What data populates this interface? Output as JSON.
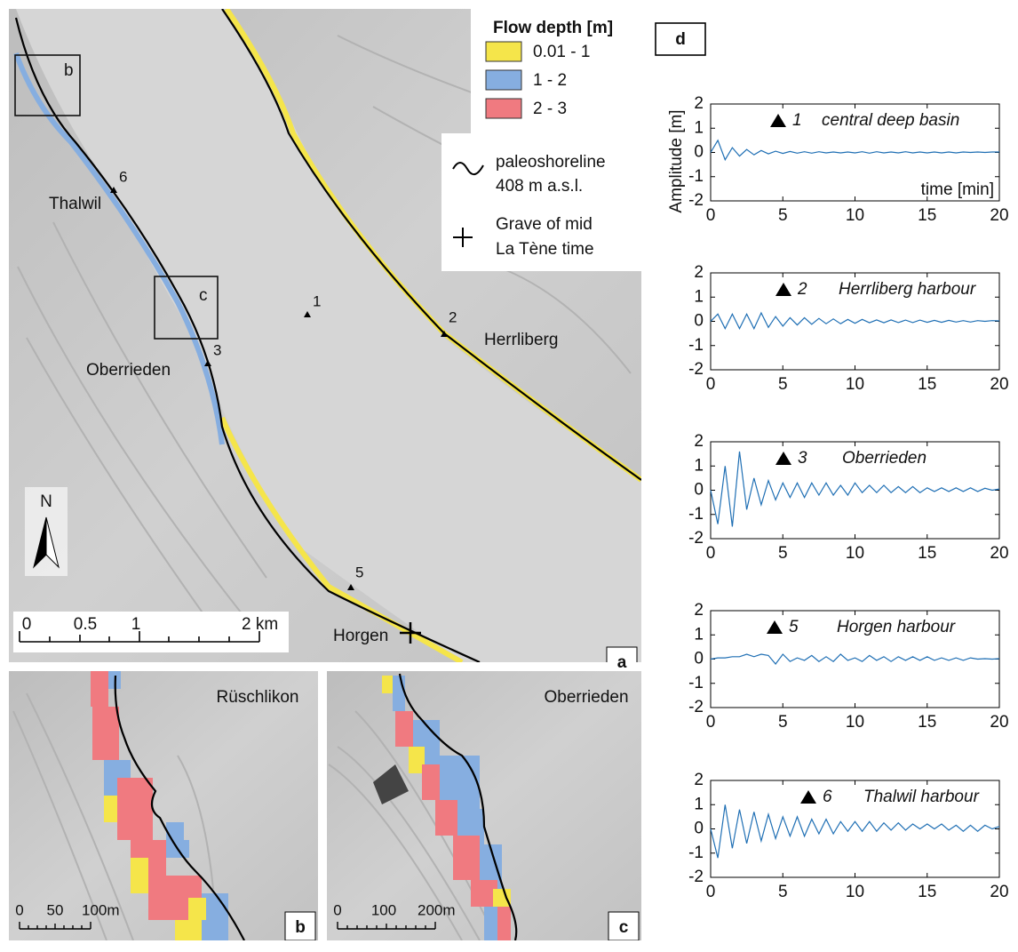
{
  "map": {
    "legend_title": "Flow depth [m]",
    "classes": [
      {
        "label": "0.01 - 1",
        "color": "#f5e54a"
      },
      {
        "label": "1 - 2",
        "color": "#86aee0"
      },
      {
        "label": "2 - 3",
        "color": "#f07a80"
      }
    ],
    "shoreline_label_1": "paleoshoreline",
    "shoreline_label_2": "408 m a.s.l.",
    "grave_label_1": "Grave  of mid",
    "grave_label_2": "La Tène time",
    "stations": [
      "1",
      "2",
      "3",
      "5",
      "6"
    ],
    "places": [
      "Thalwil",
      "Herrliberg",
      "Oberrieden",
      "Horgen"
    ],
    "north": "N",
    "scale_labels": [
      "0",
      "0.5",
      "1",
      "2 km"
    ],
    "inset_boxes": [
      "b",
      "c"
    ],
    "panel_labels": [
      "a",
      "b",
      "c",
      "d"
    ],
    "inset_b": {
      "place": "Rüschlikon",
      "scale_labels": [
        "0",
        "50",
        "100m"
      ]
    },
    "inset_c": {
      "place": "Oberrieden",
      "scale_labels": [
        "0",
        "100",
        "200m"
      ]
    }
  },
  "chart_data": [
    {
      "type": "line",
      "station": "1",
      "title": "central deep basin",
      "ylabel": "Amplitude [m]",
      "annotation": "time [min]",
      "x": [
        0,
        0.5,
        1,
        1.5,
        2,
        2.5,
        3,
        3.5,
        4,
        4.5,
        5,
        5.5,
        6,
        6.5,
        7,
        7.5,
        8,
        8.5,
        9,
        9.5,
        10,
        10.5,
        11,
        11.5,
        12,
        12.5,
        13,
        13.5,
        14,
        14.5,
        15,
        15.5,
        16,
        16.5,
        17,
        17.5,
        18,
        18.5,
        19,
        19.5,
        20
      ],
      "values": [
        0,
        0.5,
        -0.3,
        0.2,
        -0.15,
        0.12,
        -0.1,
        0.08,
        -0.06,
        0.05,
        -0.04,
        0.04,
        -0.03,
        0.03,
        -0.03,
        0.03,
        -0.02,
        0.02,
        -0.02,
        0.02,
        -0.02,
        0.03,
        -0.03,
        0.03,
        -0.02,
        0.02,
        -0.02,
        0.03,
        -0.02,
        0.02,
        -0.02,
        0.02,
        -0.02,
        0.02,
        -0.02,
        0.02,
        0,
        0.02,
        0,
        0.02,
        0.02
      ],
      "color": "#1f6fb4",
      "xlim": [
        0,
        20
      ],
      "xticks": [
        0,
        5,
        10,
        15,
        20
      ],
      "ylim": [
        -2,
        2
      ],
      "yticks": [
        -2,
        -1,
        0,
        1,
        2
      ]
    },
    {
      "type": "line",
      "station": "2",
      "title": "Herrliberg harbour",
      "x": [
        0,
        0.5,
        1,
        1.5,
        2,
        2.5,
        3,
        3.5,
        4,
        4.5,
        5,
        5.5,
        6,
        6.5,
        7,
        7.5,
        8,
        8.5,
        9,
        9.5,
        10,
        10.5,
        11,
        11.5,
        12,
        12.5,
        13,
        13.5,
        14,
        14.5,
        15,
        15.5,
        16,
        16.5,
        17,
        17.5,
        18,
        18.5,
        19,
        19.5,
        20
      ],
      "values": [
        0,
        0.3,
        -0.3,
        0.3,
        -0.3,
        0.3,
        -0.3,
        0.35,
        -0.25,
        0.2,
        -0.2,
        0.15,
        -0.15,
        0.15,
        -0.12,
        0.12,
        -0.1,
        0.1,
        -0.1,
        0.08,
        -0.08,
        0.08,
        -0.06,
        0.06,
        -0.06,
        0.06,
        -0.05,
        0.05,
        -0.05,
        0.05,
        -0.04,
        0.04,
        -0.04,
        0.04,
        -0.03,
        0.03,
        -0.03,
        0.03,
        0,
        0.03,
        0.02
      ],
      "color": "#1f6fb4",
      "xlim": [
        0,
        20
      ],
      "xticks": [
        0,
        5,
        10,
        15,
        20
      ],
      "ylim": [
        -2,
        2
      ],
      "yticks": [
        -2,
        -1,
        0,
        1,
        2
      ]
    },
    {
      "type": "line",
      "station": "3",
      "title": "Oberrieden",
      "x": [
        0,
        0.5,
        1,
        1.5,
        2,
        2.5,
        3,
        3.5,
        4,
        4.5,
        5,
        5.5,
        6,
        6.5,
        7,
        7.5,
        8,
        8.5,
        9,
        9.5,
        10,
        10.5,
        11,
        11.5,
        12,
        12.5,
        13,
        13.5,
        14,
        14.5,
        15,
        15.5,
        16,
        16.5,
        17,
        17.5,
        18,
        18.5,
        19,
        19.5,
        20
      ],
      "values": [
        0,
        -1.4,
        1.0,
        -1.5,
        1.6,
        -0.8,
        0.5,
        -0.6,
        0.4,
        -0.4,
        0.3,
        -0.3,
        0.3,
        -0.3,
        0.3,
        -0.2,
        0.3,
        -0.2,
        0.2,
        -0.2,
        0.3,
        -0.1,
        0.2,
        -0.1,
        0.2,
        -0.1,
        0.15,
        -0.1,
        0.15,
        -0.1,
        0.1,
        -0.05,
        0.1,
        -0.05,
        0.1,
        -0.05,
        0.1,
        -0.05,
        0.08,
        0,
        0.05
      ],
      "color": "#1f6fb4",
      "xlim": [
        0,
        20
      ],
      "xticks": [
        0,
        5,
        10,
        15,
        20
      ],
      "ylim": [
        -2,
        2
      ],
      "yticks": [
        -2,
        -1,
        0,
        1,
        2
      ]
    },
    {
      "type": "line",
      "station": "5",
      "title": "Horgen harbour",
      "x": [
        0,
        0.5,
        1,
        1.5,
        2,
        2.5,
        3,
        3.5,
        4,
        4.5,
        5,
        5.5,
        6,
        6.5,
        7,
        7.5,
        8,
        8.5,
        9,
        9.5,
        10,
        10.5,
        11,
        11.5,
        12,
        12.5,
        13,
        13.5,
        14,
        14.5,
        15,
        15.5,
        16,
        16.5,
        17,
        17.5,
        18,
        18.5,
        19,
        19.5,
        20
      ],
      "values": [
        0,
        0.05,
        0.05,
        0.1,
        0.1,
        0.2,
        0.1,
        0.2,
        0.15,
        -0.2,
        0.2,
        -0.1,
        0.05,
        -0.05,
        0.15,
        -0.1,
        0.1,
        -0.1,
        0.2,
        -0.05,
        0.05,
        -0.1,
        0.15,
        -0.05,
        0.1,
        -0.1,
        0.1,
        -0.05,
        0.1,
        -0.05,
        0.1,
        -0.05,
        0.05,
        -0.05,
        0.05,
        -0.05,
        0.05,
        0,
        0.02,
        0,
        0.02
      ],
      "color": "#1f6fb4",
      "xlim": [
        0,
        20
      ],
      "xticks": [
        0,
        5,
        10,
        15,
        20
      ],
      "ylim": [
        -2,
        2
      ],
      "yticks": [
        -2,
        -1,
        0,
        1,
        2
      ]
    },
    {
      "type": "line",
      "station": "6",
      "title": "Thalwil harbour",
      "x": [
        0,
        0.5,
        1,
        1.5,
        2,
        2.5,
        3,
        3.5,
        4,
        4.5,
        5,
        5.5,
        6,
        6.5,
        7,
        7.5,
        8,
        8.5,
        9,
        9.5,
        10,
        10.5,
        11,
        11.5,
        12,
        12.5,
        13,
        13.5,
        14,
        14.5,
        15,
        15.5,
        16,
        16.5,
        17,
        17.5,
        18,
        18.5,
        19,
        19.5,
        20
      ],
      "values": [
        0,
        -1.2,
        1.0,
        -0.8,
        0.8,
        -0.6,
        0.7,
        -0.5,
        0.6,
        -0.4,
        0.5,
        -0.3,
        0.5,
        -0.3,
        0.4,
        -0.2,
        0.4,
        -0.2,
        0.3,
        -0.1,
        0.3,
        -0.1,
        0.3,
        -0.1,
        0.25,
        -0.05,
        0.25,
        -0.05,
        0.2,
        0,
        0.2,
        0,
        0.2,
        -0.05,
        0.15,
        -0.1,
        0.15,
        -0.1,
        0.15,
        0,
        0.1
      ],
      "color": "#1f6fb4",
      "xlim": [
        0,
        20
      ],
      "xticks": [
        0,
        5,
        10,
        15,
        20
      ],
      "ylim": [
        -2,
        2
      ],
      "yticks": [
        -2,
        -1,
        0,
        1,
        2
      ]
    }
  ]
}
